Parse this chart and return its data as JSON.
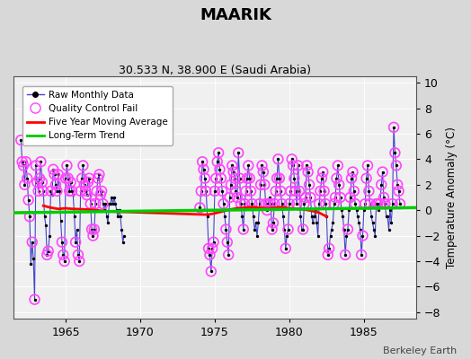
{
  "title": "MAARIK",
  "subtitle": "30.533 N, 38.900 E (Saudi Arabia)",
  "ylabel": "Temperature Anomaly (°C)",
  "watermark": "Berkeley Earth",
  "ylim": [
    -8.5,
    10.5
  ],
  "yticks": [
    -8,
    -6,
    -4,
    -2,
    0,
    2,
    4,
    6,
    8,
    10
  ],
  "xlim": [
    1961.5,
    1988.5
  ],
  "xticks": [
    1965,
    1970,
    1975,
    1980,
    1985
  ],
  "bg_color": "#d8d8d8",
  "plot_bg_color": "#f0f0f0",
  "raw_line_color": "#4444cc",
  "raw_dot_color": "#000000",
  "qc_fail_color": "#ff44ff",
  "moving_avg_color": "#ff0000",
  "trend_color": "#00cc00",
  "segment1": {
    "times": [
      1962.0,
      1962.083,
      1962.167,
      1962.25,
      1962.333,
      1962.417,
      1962.5,
      1962.583,
      1962.667,
      1962.75,
      1962.833,
      1962.917,
      1963.0,
      1963.083,
      1963.167,
      1963.25,
      1963.333,
      1963.417,
      1963.5,
      1963.583,
      1963.667,
      1963.75,
      1963.833,
      1963.917,
      1964.0,
      1964.083,
      1964.167,
      1964.25,
      1964.333,
      1964.417,
      1964.5,
      1964.583,
      1964.667,
      1964.75,
      1964.833,
      1964.917,
      1965.0,
      1965.083,
      1965.167,
      1965.25,
      1965.333,
      1965.417,
      1965.5,
      1965.583,
      1965.667,
      1965.75,
      1965.833,
      1965.917,
      1966.0,
      1966.083,
      1966.167,
      1966.25,
      1966.333,
      1966.417,
      1966.5,
      1966.583,
      1966.667,
      1966.75,
      1966.833,
      1966.917,
      1967.0,
      1967.083,
      1967.167,
      1967.25,
      1967.333,
      1967.417,
      1967.5,
      1967.583,
      1967.667,
      1967.75,
      1967.833,
      1967.917,
      1968.0,
      1968.083,
      1968.167,
      1968.25,
      1968.333,
      1968.417,
      1968.5,
      1968.583,
      1968.667,
      1968.75,
      1968.833,
      1968.917
    ],
    "values": [
      5.5,
      3.8,
      3.5,
      2.0,
      3.8,
      2.5,
      0.8,
      -0.5,
      -4.2,
      -2.5,
      -3.8,
      -7.0,
      3.5,
      2.2,
      1.5,
      2.5,
      3.8,
      2.2,
      1.5,
      -0.5,
      -1.2,
      -3.5,
      -3.2,
      -2.0,
      1.5,
      1.2,
      3.2,
      2.8,
      2.0,
      1.5,
      2.8,
      1.5,
      -0.8,
      -2.5,
      -3.5,
      -4.0,
      2.5,
      3.5,
      2.5,
      1.5,
      2.2,
      1.5,
      1.2,
      -0.5,
      -2.5,
      -1.5,
      -3.5,
      -4.0,
      1.5,
      2.5,
      3.5,
      2.0,
      1.5,
      1.2,
      2.2,
      2.5,
      0.5,
      -1.5,
      -2.0,
      -1.5,
      0.5,
      1.5,
      2.5,
      2.8,
      1.2,
      1.5,
      0.5,
      0.0,
      0.5,
      -0.5,
      -1.0,
      0.5,
      0.5,
      1.0,
      0.5,
      1.0,
      0.5,
      0.0,
      -0.5,
      0.0,
      -0.5,
      -1.5,
      -2.5,
      -2.0
    ],
    "qc": [
      1,
      1,
      1,
      1,
      1,
      1,
      1,
      1,
      0,
      1,
      0,
      1,
      1,
      1,
      1,
      1,
      1,
      1,
      1,
      0,
      0,
      1,
      1,
      0,
      1,
      0,
      1,
      1,
      1,
      1,
      1,
      0,
      0,
      1,
      1,
      1,
      1,
      1,
      1,
      1,
      1,
      1,
      0,
      0,
      1,
      0,
      1,
      1,
      1,
      1,
      1,
      1,
      1,
      1,
      1,
      1,
      1,
      1,
      1,
      1,
      1,
      1,
      1,
      1,
      1,
      1,
      1,
      0,
      0,
      0,
      0,
      0,
      0,
      0,
      0,
      0,
      0,
      0,
      0,
      0,
      0,
      0,
      0,
      0
    ]
  },
  "segment2": {
    "times": [
      1974.0,
      1974.083,
      1974.167,
      1974.25,
      1974.333,
      1974.417,
      1974.5,
      1974.583,
      1974.667,
      1974.75,
      1974.833,
      1974.917,
      1975.0,
      1975.083,
      1975.167,
      1975.25,
      1975.333,
      1975.417,
      1975.5,
      1975.583,
      1975.667,
      1975.75,
      1975.833,
      1975.917,
      1976.0,
      1976.083,
      1976.167,
      1976.25,
      1976.333,
      1976.417,
      1976.5,
      1976.583,
      1976.667,
      1976.75,
      1976.833,
      1976.917,
      1977.0,
      1977.083,
      1977.167,
      1977.25,
      1977.333,
      1977.417,
      1977.5,
      1977.583,
      1977.667,
      1977.75,
      1977.833,
      1977.917,
      1978.0,
      1978.083,
      1978.167,
      1978.25,
      1978.333,
      1978.417,
      1978.5,
      1978.583,
      1978.667,
      1978.75,
      1978.833,
      1978.917,
      1979.0,
      1979.083,
      1979.167,
      1979.25,
      1979.333,
      1979.417,
      1979.5,
      1979.583,
      1979.667,
      1979.75,
      1979.833,
      1979.917,
      1980.0,
      1980.083,
      1980.167,
      1980.25,
      1980.333,
      1980.417,
      1980.5,
      1980.583,
      1980.667,
      1980.75,
      1980.833,
      1980.917,
      1981.0,
      1981.083,
      1981.167,
      1981.25,
      1981.333,
      1981.417,
      1981.5,
      1981.583,
      1981.667,
      1981.75,
      1981.833,
      1981.917,
      1982.0,
      1982.083,
      1982.167,
      1982.25,
      1982.333,
      1982.417,
      1982.5,
      1982.583,
      1982.667,
      1982.75,
      1982.833,
      1982.917,
      1983.0,
      1983.083,
      1983.167,
      1983.25,
      1983.333,
      1983.417,
      1983.5,
      1983.583,
      1983.667,
      1983.75,
      1983.833,
      1983.917,
      1984.0,
      1984.083,
      1984.167,
      1984.25,
      1984.333,
      1984.417,
      1984.5,
      1984.583,
      1984.667,
      1984.75,
      1984.833,
      1984.917,
      1985.0,
      1985.083,
      1985.167,
      1985.25,
      1985.333,
      1985.417,
      1985.5,
      1985.583,
      1985.667,
      1985.75,
      1985.833,
      1985.917,
      1986.0,
      1986.083,
      1986.167,
      1986.25,
      1986.333,
      1986.417,
      1986.5,
      1986.583,
      1986.667,
      1986.75,
      1986.833,
      1986.917,
      1987.0,
      1987.083,
      1987.167,
      1987.25,
      1987.333,
      1987.417
    ],
    "values": [
      0.2,
      1.5,
      3.8,
      3.2,
      2.5,
      1.5,
      -0.5,
      -3.0,
      -3.5,
      -4.8,
      -3.0,
      -2.5,
      1.5,
      2.5,
      3.8,
      4.5,
      3.2,
      2.5,
      1.5,
      0.5,
      -0.5,
      -1.5,
      -2.5,
      -3.5,
      1.0,
      2.0,
      3.5,
      3.0,
      2.5,
      1.5,
      1.0,
      4.5,
      2.5,
      0.5,
      -0.5,
      -1.5,
      0.5,
      1.5,
      2.5,
      3.5,
      2.5,
      1.5,
      0.5,
      -0.5,
      -1.5,
      -1.0,
      -2.0,
      -1.0,
      0.5,
      2.0,
      3.5,
      3.0,
      2.0,
      0.5,
      0.0,
      0.5,
      1.0,
      0.5,
      -1.5,
      -1.0,
      0.5,
      1.5,
      2.5,
      4.0,
      2.5,
      1.5,
      0.5,
      -0.5,
      -1.5,
      -3.0,
      -2.0,
      -1.5,
      0.5,
      1.5,
      4.0,
      3.5,
      2.5,
      1.5,
      0.5,
      3.5,
      1.5,
      -0.5,
      -1.5,
      -1.5,
      0.5,
      1.0,
      3.5,
      3.0,
      2.0,
      1.0,
      -0.5,
      -1.0,
      -0.5,
      0.0,
      -1.0,
      -2.0,
      0.5,
      1.5,
      2.5,
      3.0,
      1.5,
      0.5,
      -0.5,
      -3.5,
      -3.0,
      -2.0,
      -1.5,
      -1.0,
      0.5,
      1.0,
      2.5,
      3.5,
      2.0,
      1.0,
      0.0,
      -0.5,
      -1.5,
      -3.5,
      -2.0,
      -1.5,
      0.0,
      1.0,
      2.5,
      3.0,
      1.5,
      0.5,
      0.0,
      -0.5,
      -1.0,
      -1.5,
      -3.5,
      -2.0,
      0.0,
      0.5,
      2.5,
      3.5,
      1.5,
      0.5,
      -0.5,
      -1.0,
      -1.5,
      -2.0,
      0.5,
      0.5,
      0.0,
      0.5,
      2.0,
      3.0,
      1.0,
      0.5,
      -0.5,
      -0.5,
      -1.5,
      0.0,
      -1.0,
      0.5,
      6.5,
      4.5,
      3.5,
      2.0,
      1.5,
      0.5
    ],
    "qc": [
      1,
      1,
      1,
      1,
      1,
      1,
      0,
      1,
      1,
      1,
      1,
      1,
      1,
      1,
      1,
      1,
      1,
      1,
      1,
      1,
      0,
      1,
      1,
      1,
      1,
      1,
      1,
      1,
      1,
      1,
      1,
      1,
      1,
      1,
      0,
      1,
      1,
      1,
      1,
      1,
      1,
      1,
      1,
      0,
      0,
      0,
      0,
      0,
      1,
      1,
      1,
      1,
      1,
      1,
      1,
      1,
      0,
      1,
      1,
      1,
      1,
      1,
      1,
      1,
      1,
      1,
      1,
      0,
      0,
      1,
      0,
      1,
      1,
      1,
      1,
      1,
      1,
      1,
      1,
      1,
      1,
      0,
      0,
      1,
      1,
      1,
      1,
      1,
      1,
      1,
      0,
      0,
      0,
      0,
      0,
      0,
      1,
      1,
      1,
      1,
      1,
      1,
      0,
      1,
      1,
      0,
      0,
      0,
      1,
      1,
      1,
      1,
      1,
      1,
      0,
      0,
      0,
      1,
      0,
      1,
      0,
      1,
      1,
      1,
      1,
      1,
      0,
      0,
      0,
      0,
      1,
      1,
      0,
      1,
      1,
      1,
      1,
      1,
      0,
      0,
      0,
      0,
      1,
      1,
      0,
      1,
      1,
      1,
      1,
      1,
      0,
      0,
      0,
      0,
      0,
      1,
      1,
      1,
      1,
      1,
      1,
      1
    ]
  },
  "moving_avg": {
    "times": [
      1963.5,
      1964.0,
      1964.5,
      1965.0,
      1965.5,
      1966.0,
      1966.5,
      1967.0,
      1967.5,
      1968.0,
      1974.5,
      1975.0,
      1975.5,
      1976.0,
      1976.5,
      1977.0,
      1977.5,
      1978.0,
      1978.5,
      1979.0,
      1979.5,
      1980.0,
      1980.5,
      1981.0,
      1981.5,
      1982.0,
      1982.5
    ],
    "values": [
      0.35,
      0.2,
      0.1,
      0.15,
      0.1,
      0.08,
      0.05,
      0.0,
      -0.05,
      -0.1,
      -0.35,
      -0.25,
      -0.1,
      0.05,
      0.15,
      0.2,
      0.25,
      0.2,
      0.15,
      0.2,
      0.25,
      0.15,
      0.1,
      0.05,
      -0.05,
      -0.2,
      -0.5
    ]
  },
  "trend": {
    "x": [
      1961.5,
      1988.5
    ],
    "y": [
      -0.2,
      0.2
    ]
  }
}
